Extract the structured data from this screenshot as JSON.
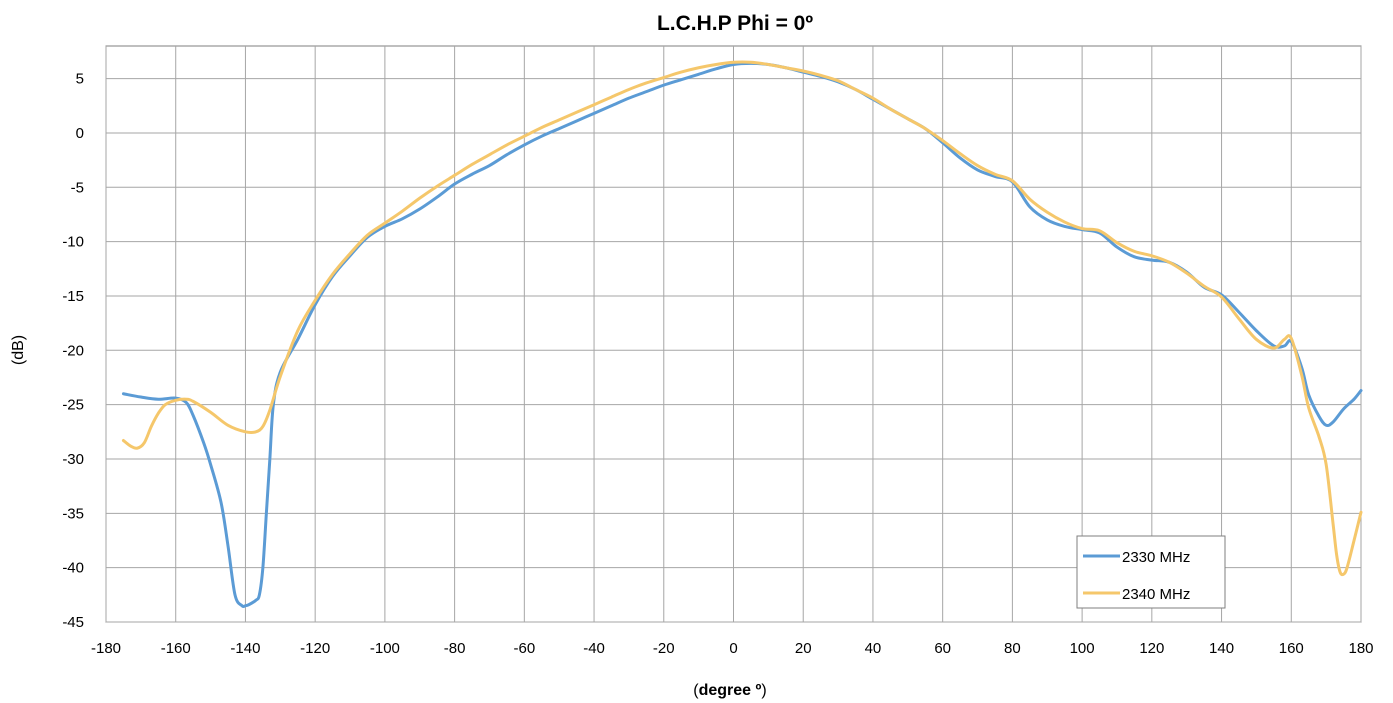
{
  "chart_data": {
    "type": "line",
    "title": "L.C.H.P Phi = 0º",
    "xlabel_prefix": "(",
    "xlabel_bold": "degree º",
    "xlabel_suffix": ")",
    "ylabel": "(dB)",
    "xlim": [
      -180,
      180
    ],
    "ylim": [
      -45,
      8
    ],
    "xticks": [
      -180,
      -160,
      -140,
      -120,
      -100,
      -80,
      -60,
      -40,
      -20,
      0,
      20,
      40,
      60,
      80,
      100,
      120,
      140,
      160,
      180
    ],
    "yticks": [
      -45,
      -40,
      -35,
      -30,
      -25,
      -20,
      -15,
      -10,
      -5,
      0,
      5
    ],
    "grid": true,
    "legend_position": "bottom-right",
    "series": [
      {
        "name": "2330 MHz",
        "color": "#5B9BD5",
        "x": [
          -175,
          -170,
          -165,
          -160,
          -157,
          -155,
          -152,
          -150,
          -147,
          -145,
          -143,
          -141,
          -140,
          -139,
          -137,
          -136,
          -135,
          -134,
          -133,
          -132,
          -130,
          -125,
          -120,
          -115,
          -110,
          -105,
          -100,
          -95,
          -90,
          -85,
          -80,
          -75,
          -70,
          -65,
          -60,
          -55,
          -50,
          -45,
          -40,
          -35,
          -30,
          -25,
          -20,
          -15,
          -10,
          -5,
          0,
          5,
          10,
          15,
          20,
          25,
          30,
          35,
          40,
          45,
          50,
          55,
          60,
          65,
          70,
          75,
          80,
          85,
          90,
          95,
          100,
          105,
          110,
          115,
          120,
          125,
          130,
          135,
          140,
          145,
          150,
          155,
          158,
          160,
          163,
          165,
          168,
          170,
          172,
          175,
          178,
          180
        ],
        "y": [
          -24.0,
          -24.3,
          -24.5,
          -24.4,
          -24.8,
          -26.0,
          -28.5,
          -30.5,
          -34.0,
          -38.0,
          -42.5,
          -43.5,
          -43.5,
          -43.4,
          -43.0,
          -42.5,
          -40.0,
          -35.0,
          -30.0,
          -25.0,
          -22.0,
          -19.0,
          -15.8,
          -13.2,
          -11.3,
          -9.6,
          -8.6,
          -7.9,
          -7.0,
          -5.9,
          -4.7,
          -3.8,
          -3.0,
          -2.0,
          -1.1,
          -0.3,
          0.4,
          1.1,
          1.8,
          2.5,
          3.2,
          3.8,
          4.4,
          4.9,
          5.4,
          5.9,
          6.3,
          6.4,
          6.3,
          6.0,
          5.6,
          5.2,
          4.7,
          4.0,
          3.1,
          2.2,
          1.3,
          0.4,
          -0.9,
          -2.3,
          -3.4,
          -4.0,
          -4.5,
          -6.8,
          -8.0,
          -8.6,
          -8.9,
          -9.2,
          -10.5,
          -11.4,
          -11.7,
          -11.9,
          -12.8,
          -14.2,
          -14.9,
          -16.5,
          -18.2,
          -19.6,
          -19.6,
          -19.2,
          -21.6,
          -24.1,
          -26.1,
          -26.9,
          -26.6,
          -25.4,
          -24.5,
          -23.7
        ]
      },
      {
        "name": "2340 MHz",
        "color": "#F5C76B",
        "x": [
          -175,
          -173,
          -171,
          -169,
          -167,
          -165,
          -163,
          -160,
          -157,
          -155,
          -150,
          -145,
          -140,
          -137,
          -135,
          -133,
          -130,
          -125,
          -120,
          -115,
          -110,
          -105,
          -100,
          -95,
          -90,
          -85,
          -80,
          -75,
          -70,
          -65,
          -60,
          -55,
          -50,
          -45,
          -40,
          -35,
          -30,
          -25,
          -20,
          -15,
          -10,
          -5,
          0,
          5,
          10,
          15,
          20,
          25,
          30,
          35,
          40,
          45,
          50,
          55,
          60,
          65,
          70,
          75,
          80,
          85,
          90,
          95,
          100,
          105,
          110,
          115,
          120,
          125,
          130,
          135,
          140,
          145,
          150,
          155,
          158,
          160,
          163,
          165,
          168,
          170,
          172,
          173,
          174,
          175,
          176,
          178,
          180
        ],
        "y": [
          -28.3,
          -28.8,
          -29.0,
          -28.5,
          -27.0,
          -25.8,
          -25.0,
          -24.6,
          -24.5,
          -24.7,
          -25.7,
          -26.9,
          -27.5,
          -27.5,
          -27.0,
          -25.5,
          -22.4,
          -18.2,
          -15.4,
          -13.0,
          -11.1,
          -9.4,
          -8.3,
          -7.2,
          -6.0,
          -4.9,
          -3.9,
          -2.9,
          -2.0,
          -1.1,
          -0.3,
          0.5,
          1.2,
          1.9,
          2.6,
          3.3,
          4.0,
          4.6,
          5.1,
          5.6,
          6.0,
          6.3,
          6.5,
          6.5,
          6.3,
          6.0,
          5.7,
          5.3,
          4.8,
          4.0,
          3.2,
          2.2,
          1.3,
          0.4,
          -0.7,
          -1.9,
          -3.0,
          -3.8,
          -4.4,
          -6.1,
          -7.3,
          -8.2,
          -8.8,
          -9.0,
          -10.1,
          -10.9,
          -11.3,
          -11.9,
          -12.9,
          -14.1,
          -15.1,
          -17.1,
          -19.0,
          -19.8,
          -19.0,
          -18.9,
          -22.3,
          -25.3,
          -28.0,
          -30.5,
          -36.0,
          -38.8,
          -40.4,
          -40.6,
          -40.0,
          -37.5,
          -34.9
        ]
      }
    ]
  }
}
